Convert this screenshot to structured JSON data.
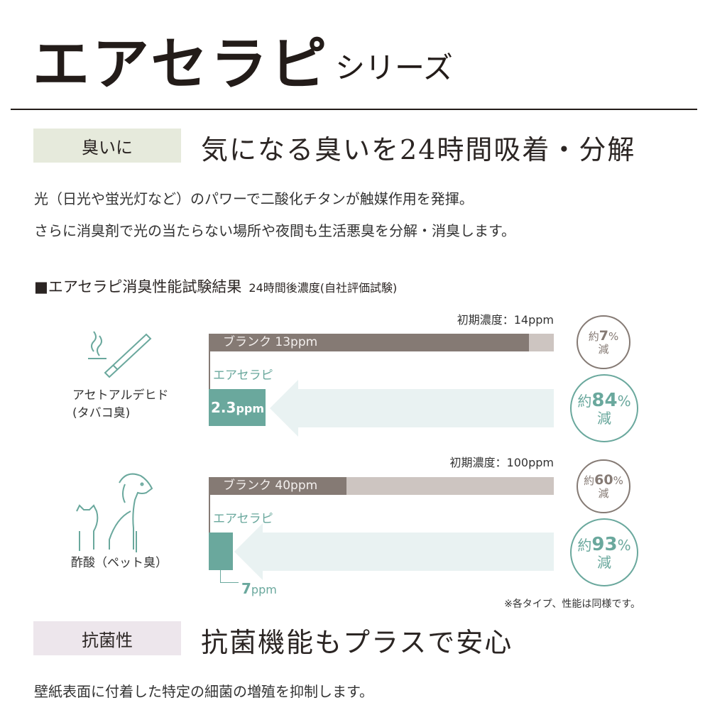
{
  "header": {
    "title": "エアセラピ",
    "series": "シリーズ"
  },
  "section1": {
    "tag": "臭いに",
    "heading": "気になる臭いを24時間吸着・分解",
    "paragraphs": [
      "光（日光や蛍光灯など）のパワーで二酸化チタンが触媒作用を発揮。",
      "さらに消臭剤で光の当たらない場所や夜間も生活悪臭を分解・消臭します。"
    ],
    "tag_color": "#e6eadc"
  },
  "test": {
    "title": "■エアセラピ消臭性能試験結果",
    "subtitle": "24時間後濃度(自社評価試験)",
    "product_label": "エアセラピ",
    "note": "※各タイプ、性能は同様です。"
  },
  "chart_data": {
    "type": "bar",
    "orientation": "horizontal",
    "unit": "ppm",
    "groups": [
      {
        "name": "アセトアルデヒド",
        "name2": "(タバコ臭)",
        "icon": "cigarette-smoke-icon",
        "initial_label": "初期濃度：14ppm",
        "initial": 14,
        "blank_label": "ブランク 13ppm",
        "blank": 13,
        "product_value": 2.3,
        "product_num": "2.3",
        "product_unit": "ppm",
        "blank_reduction": {
          "pre": "約",
          "num": "7",
          "pct": "%",
          "post": "減"
        },
        "product_reduction": {
          "pre": "約",
          "num": "84",
          "pct": "%",
          "post": "減"
        }
      },
      {
        "name": "酢酸（ペット臭）",
        "name2": "",
        "icon": "dog-cat-icon",
        "initial_label": "初期濃度：100ppm",
        "initial": 100,
        "blank_label": "ブランク 40ppm",
        "blank": 40,
        "product_value": 7,
        "product_num": "7",
        "product_unit": "ppm",
        "blank_reduction": {
          "pre": "約",
          "num": "60",
          "pct": "%",
          "post": "減"
        },
        "product_reduction": {
          "pre": "約",
          "num": "93",
          "pct": "%",
          "post": "減"
        }
      }
    ],
    "colors": {
      "blank": "#857a74",
      "remaining": "#cdc5c1",
      "product": "#6aa89d",
      "arrow": "#e9f2f2"
    }
  },
  "section2": {
    "tag": "抗菌性",
    "heading": "抗菌機能もプラスで安心",
    "paragraph": "壁紙表面に付着した特定の細菌の増殖を抑制します。",
    "tag_color": "#ede6ec"
  }
}
